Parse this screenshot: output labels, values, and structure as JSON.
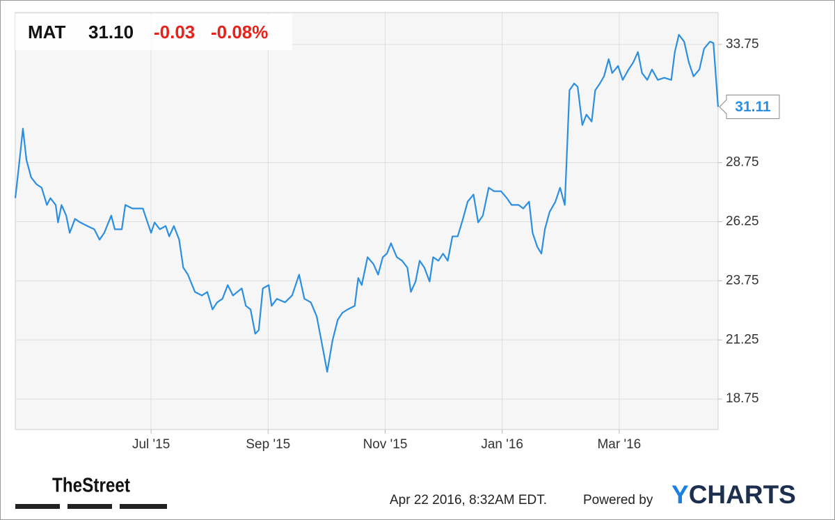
{
  "chart_data": {
    "type": "line",
    "header": {
      "ticker": "MAT",
      "price": "31.10",
      "change": "-0.03",
      "change_pct": "-0.08%"
    },
    "x": [
      0.68,
      0.74,
      0.81,
      0.87,
      0.95,
      1.04,
      1.13,
      1.22,
      1.28,
      1.37,
      1.41,
      1.47,
      1.55,
      1.61,
      1.7,
      1.79,
      1.91,
      2.03,
      2.12,
      2.2,
      2.32,
      2.38,
      2.5,
      2.56,
      2.68,
      2.8,
      2.86,
      2.94,
      3.0,
      3.06,
      3.15,
      3.25,
      3.31,
      3.39,
      3.48,
      3.55,
      3.63,
      3.75,
      3.87,
      3.96,
      4.05,
      4.13,
      4.22,
      4.31,
      4.4,
      4.55,
      4.62,
      4.7,
      4.78,
      4.84,
      4.91,
      5.01,
      5.06,
      5.15,
      5.29,
      5.41,
      5.53,
      5.62,
      5.73,
      5.83,
      5.91,
      6.01,
      6.1,
      6.19,
      6.27,
      6.36,
      6.48,
      6.54,
      6.6,
      6.7,
      6.8,
      6.88,
      6.96,
      7.03,
      7.1,
      7.2,
      7.29,
      7.38,
      7.44,
      7.52,
      7.59,
      7.67,
      7.76,
      7.82,
      7.91,
      7.99,
      8.07,
      8.15,
      8.24,
      8.33,
      8.41,
      8.51,
      8.59,
      8.67,
      8.77,
      8.86,
      8.98,
      9.08,
      9.16,
      9.28,
      9.36,
      9.46,
      9.52,
      9.6,
      9.67,
      9.73,
      9.81,
      9.91,
      9.99,
      10.07,
      10.15,
      10.23,
      10.29,
      10.37,
      10.44,
      10.53,
      10.59,
      10.67,
      10.74,
      10.82,
      10.88,
      10.98,
      11.06,
      11.16,
      11.24,
      11.32,
      11.39,
      11.48,
      11.56,
      11.66,
      11.77,
      11.89,
      11.95,
      12.02,
      12.11,
      12.19,
      12.27,
      12.37,
      12.45,
      12.55,
      12.61,
      12.69
    ],
    "series": [
      {
        "name": "MAT",
        "color": "#2b8ee0",
        "values": [
          27.25,
          28.57,
          30.19,
          28.87,
          28.13,
          27.84,
          27.69,
          26.96,
          27.25,
          26.96,
          26.22,
          26.96,
          26.51,
          25.78,
          26.37,
          26.22,
          26.07,
          25.93,
          25.49,
          25.78,
          26.51,
          25.93,
          25.93,
          26.96,
          26.81,
          26.81,
          26.81,
          26.22,
          25.78,
          26.22,
          25.93,
          26.07,
          25.63,
          26.07,
          25.49,
          24.31,
          24.01,
          23.28,
          23.13,
          23.28,
          22.54,
          22.84,
          22.99,
          23.57,
          23.13,
          23.43,
          22.69,
          22.54,
          21.51,
          21.66,
          23.43,
          23.57,
          22.69,
          22.99,
          22.84,
          23.13,
          24.01,
          22.99,
          22.84,
          22.25,
          21.22,
          19.9,
          21.22,
          22.1,
          22.4,
          22.54,
          22.69,
          23.87,
          23.57,
          24.75,
          24.46,
          24.01,
          24.75,
          24.9,
          25.34,
          24.75,
          24.6,
          24.31,
          23.28,
          23.72,
          24.6,
          24.31,
          23.72,
          24.75,
          24.6,
          24.9,
          24.6,
          25.63,
          25.63,
          26.37,
          27.1,
          27.4,
          26.22,
          26.51,
          27.69,
          27.54,
          27.54,
          27.25,
          26.96,
          26.96,
          26.81,
          27.1,
          25.78,
          25.19,
          24.9,
          25.93,
          26.66,
          27.1,
          27.69,
          26.96,
          31.81,
          32.1,
          31.96,
          30.34,
          30.78,
          30.49,
          31.81,
          32.1,
          32.4,
          33.13,
          32.54,
          32.84,
          32.25,
          32.69,
          32.99,
          33.43,
          32.54,
          32.25,
          32.69,
          32.25,
          32.34,
          32.25,
          33.43,
          34.16,
          33.87,
          32.99,
          32.4,
          32.69,
          33.57,
          33.87,
          33.81,
          31.11
        ]
      }
    ],
    "xlim": [
      0.68,
      12.69
    ],
    "xticks": [
      {
        "value": 3,
        "label": "Jul '15"
      },
      {
        "value": 5,
        "label": "Sep '15"
      },
      {
        "value": 7,
        "label": "Nov '15"
      },
      {
        "value": 9,
        "label": "Jan '16"
      },
      {
        "value": 11,
        "label": "Mar '16"
      }
    ],
    "ylim": [
      17.46,
      35.1
    ],
    "yticks": [
      18.75,
      21.25,
      23.75,
      26.25,
      28.75,
      33.75
    ],
    "grid": true,
    "footer": {
      "source": "TheStreet",
      "timestamp": "Apr 22 2016, 8:32AM EDT.",
      "powered": "Powered by",
      "brand": "YCHARTS"
    }
  }
}
